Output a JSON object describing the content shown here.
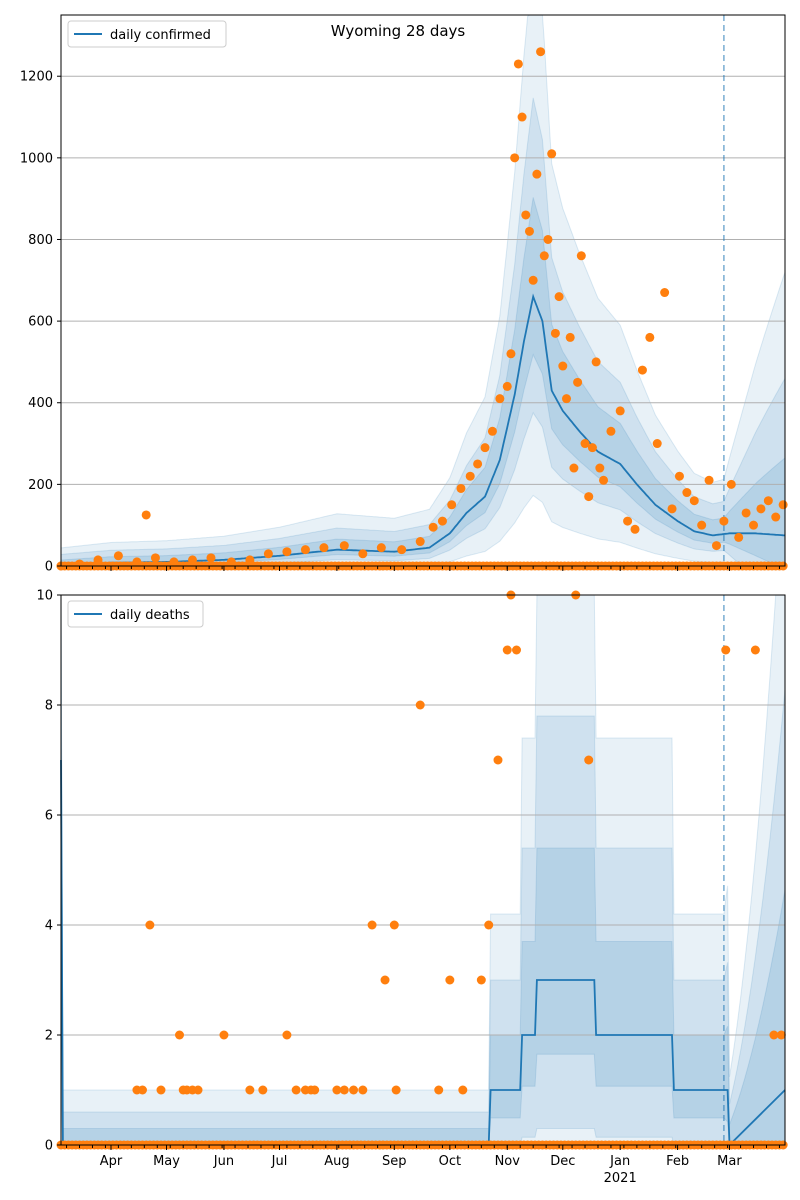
{
  "chart_data": [
    {
      "type": "line",
      "title": "Wyoming 28 days",
      "xlabel": "",
      "ylabel": "",
      "xlim": [
        "2020-03-05",
        "2021-03-31"
      ],
      "ylim": [
        0,
        1350
      ],
      "yticks": [
        0,
        200,
        400,
        600,
        800,
        1000,
        1200
      ],
      "grid": "y",
      "legend": {
        "placement": "top-left",
        "entries": [
          "daily confirmed"
        ]
      },
      "colors": {
        "model": "#1f77b4",
        "observed": "#ff7f0e",
        "band": "#1f77b4"
      },
      "forecast_start": "2021-02-26",
      "series": [
        {
          "name": "daily confirmed",
          "kind": "line",
          "x": [
            "2020-03-05",
            "2020-04-01",
            "2020-05-01",
            "2020-06-01",
            "2020-07-01",
            "2020-08-01",
            "2020-09-01",
            "2020-09-20",
            "2020-10-01",
            "2020-10-10",
            "2020-10-20",
            "2020-10-28",
            "2020-11-05",
            "2020-11-10",
            "2020-11-15",
            "2020-11-20",
            "2020-11-25",
            "2020-12-01",
            "2020-12-10",
            "2020-12-20",
            "2021-01-01",
            "2021-01-10",
            "2021-01-20",
            "2021-02-01",
            "2021-02-10",
            "2021-02-20",
            "2021-03-01",
            "2021-03-15",
            "2021-03-31"
          ],
          "y": [
            2,
            8,
            10,
            15,
            25,
            40,
            35,
            45,
            80,
            130,
            170,
            260,
            420,
            550,
            660,
            600,
            430,
            380,
            330,
            280,
            250,
            200,
            150,
            110,
            85,
            75,
            80,
            80,
            75
          ]
        },
        {
          "kind": "scatter",
          "x": [
            "2020-03-05",
            "2020-03-15",
            "2020-03-25",
            "2020-04-05",
            "2020-04-15",
            "2020-04-20",
            "2020-04-25",
            "2020-05-05",
            "2020-05-15",
            "2020-05-25",
            "2020-06-05",
            "2020-06-15",
            "2020-06-25",
            "2020-07-05",
            "2020-07-15",
            "2020-07-25",
            "2020-08-05",
            "2020-08-15",
            "2020-08-25",
            "2020-09-05",
            "2020-09-15",
            "2020-09-22",
            "2020-09-27",
            "2020-10-02",
            "2020-10-07",
            "2020-10-12",
            "2020-10-16",
            "2020-10-20",
            "2020-10-24",
            "2020-10-28",
            "2020-11-01",
            "2020-11-03",
            "2020-11-05",
            "2020-11-07",
            "2020-11-09",
            "2020-11-11",
            "2020-11-13",
            "2020-11-15",
            "2020-11-17",
            "2020-11-19",
            "2020-11-21",
            "2020-11-23",
            "2020-11-25",
            "2020-11-27",
            "2020-11-29",
            "2020-12-01",
            "2020-12-03",
            "2020-12-05",
            "2020-12-07",
            "2020-12-09",
            "2020-12-11",
            "2020-12-13",
            "2020-12-15",
            "2020-12-17",
            "2020-12-19",
            "2020-12-21",
            "2020-12-23",
            "2020-12-27",
            "2021-01-01",
            "2021-01-05",
            "2021-01-09",
            "2021-01-13",
            "2021-01-17",
            "2021-01-21",
            "2021-01-25",
            "2021-01-29",
            "2021-02-02",
            "2021-02-06",
            "2021-02-10",
            "2021-02-14",
            "2021-02-18",
            "2021-02-22",
            "2021-02-26",
            "2021-03-02",
            "2021-03-06",
            "2021-03-10",
            "2021-03-14",
            "2021-03-18",
            "2021-03-22",
            "2021-03-26",
            "2021-03-30"
          ],
          "y": [
            0,
            5,
            15,
            25,
            10,
            125,
            20,
            10,
            15,
            20,
            10,
            15,
            30,
            35,
            40,
            45,
            50,
            30,
            45,
            40,
            60,
            95,
            110,
            150,
            190,
            220,
            250,
            290,
            330,
            410,
            440,
            520,
            1000,
            1230,
            1100,
            860,
            820,
            700,
            960,
            1260,
            760,
            800,
            1010,
            570,
            660,
            490,
            410,
            560,
            240,
            450,
            760,
            300,
            170,
            290,
            500,
            240,
            210,
            330,
            380,
            110,
            90,
            480,
            560,
            300,
            670,
            140,
            220,
            180,
            160,
            100,
            210,
            50,
            110,
            200,
            70,
            130,
            100,
            140,
            160,
            120,
            150
          ]
        }
      ]
    },
    {
      "type": "line",
      "title": "",
      "xlabel": "",
      "ylabel": "",
      "xlim": [
        "2020-03-05",
        "2021-03-31"
      ],
      "ylim": [
        0,
        10
      ],
      "yticks": [
        0,
        2,
        4,
        6,
        8,
        10
      ],
      "xticks": [
        "Apr",
        "May",
        "Jun",
        "Jul",
        "Aug",
        "Sep",
        "Oct",
        "Nov",
        "Dec",
        "Jan",
        "Feb",
        "Mar"
      ],
      "xtick_dates": [
        "2020-04-01",
        "2020-05-01",
        "2020-06-01",
        "2020-07-01",
        "2020-08-01",
        "2020-09-01",
        "2020-10-01",
        "2020-11-01",
        "2020-12-01",
        "2021-01-01",
        "2021-02-01",
        "2021-03-01"
      ],
      "year_label": "2021",
      "grid": "y",
      "legend": {
        "placement": "top-left",
        "entries": [
          "daily deaths"
        ]
      },
      "colors": {
        "model": "#1f77b4",
        "observed": "#ff7f0e",
        "band": "#1f77b4"
      },
      "forecast_start": "2021-02-26",
      "series": [
        {
          "name": "daily deaths",
          "kind": "line",
          "x": [
            "2020-03-05",
            "2020-03-06",
            "2020-10-22",
            "2020-10-23",
            "2020-11-08",
            "2020-11-09",
            "2020-11-16",
            "2020-11-17",
            "2020-11-20",
            "2020-11-21",
            "2020-12-18",
            "2020-12-19",
            "2021-01-29",
            "2021-01-30",
            "2021-02-28",
            "2021-03-01",
            "2021-03-31"
          ],
          "y": [
            7,
            0,
            0,
            1,
            1,
            2,
            2,
            3,
            3,
            3,
            3,
            2,
            2,
            1,
            1,
            0,
            1
          ]
        },
        {
          "kind": "scatter",
          "x": [
            "2020-04-15",
            "2020-04-18",
            "2020-04-22",
            "2020-04-28",
            "2020-05-08",
            "2020-05-10",
            "2020-05-12",
            "2020-05-15",
            "2020-05-18",
            "2020-06-01",
            "2020-06-15",
            "2020-06-22",
            "2020-07-05",
            "2020-07-10",
            "2020-07-15",
            "2020-07-18",
            "2020-07-20",
            "2020-08-01",
            "2020-08-05",
            "2020-08-10",
            "2020-08-15",
            "2020-08-20",
            "2020-08-27",
            "2020-09-01",
            "2020-09-02",
            "2020-09-15",
            "2020-09-25",
            "2020-10-01",
            "2020-10-08",
            "2020-10-18",
            "2020-10-22",
            "2020-10-27",
            "2020-11-01",
            "2020-11-03",
            "2020-11-06",
            "2020-12-08",
            "2020-12-15",
            "2021-02-27",
            "2021-03-15",
            "2021-03-25",
            "2021-03-29"
          ],
          "y": [
            1,
            1,
            4,
            1,
            2,
            1,
            1,
            1,
            1,
            2,
            1,
            1,
            2,
            1,
            1,
            1,
            1,
            1,
            1,
            1,
            1,
            4,
            3,
            4,
            1,
            8,
            1,
            3,
            1,
            3,
            4,
            7,
            9,
            10,
            9,
            10,
            7,
            9,
            9,
            2,
            2
          ]
        }
      ]
    }
  ]
}
